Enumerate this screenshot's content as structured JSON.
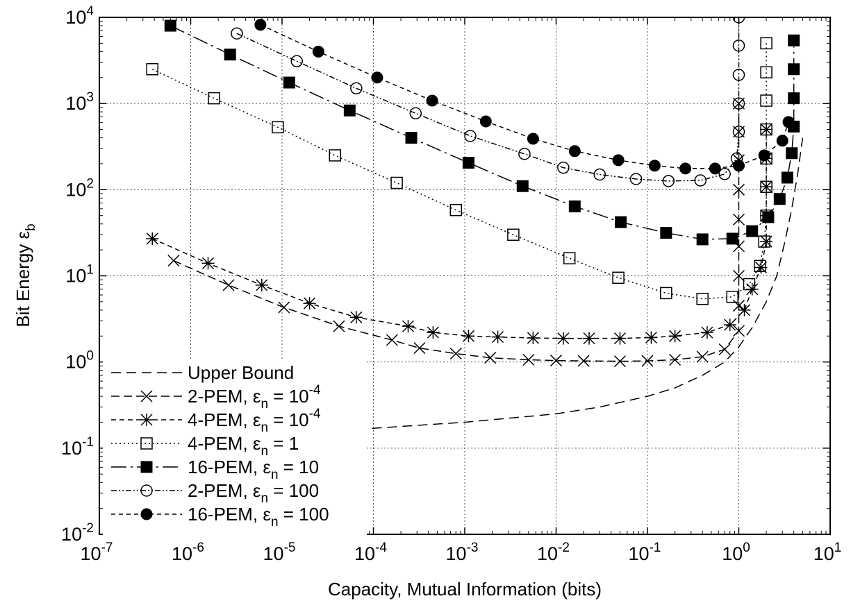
{
  "chart_data": {
    "type": "line",
    "xlabel": "Capacity, Mutual Information (bits)",
    "ylabel": {
      "text": "Bit Energy ε",
      "sub": "b"
    },
    "x_scale": "log",
    "y_scale": "log",
    "xlim": [
      1e-07,
      10
    ],
    "ylim": [
      0.01,
      10000
    ],
    "grid": true,
    "legend_position": "bottom-left",
    "x_ticks": [
      {
        "value": 1e-07,
        "base": "10",
        "exp": "-7"
      },
      {
        "value": 1e-06,
        "base": "10",
        "exp": "-6"
      },
      {
        "value": 1e-05,
        "base": "10",
        "exp": "-5"
      },
      {
        "value": 0.0001,
        "base": "10",
        "exp": "-4"
      },
      {
        "value": 0.001,
        "base": "10",
        "exp": "-3"
      },
      {
        "value": 0.01,
        "base": "10",
        "exp": "-2"
      },
      {
        "value": 0.1,
        "base": "10",
        "exp": "-1"
      },
      {
        "value": 1,
        "base": "10",
        "exp": "0"
      },
      {
        "value": 10,
        "base": "10",
        "exp": "1"
      }
    ],
    "y_ticks": [
      {
        "value": 0.01,
        "base": "10",
        "exp": "-2"
      },
      {
        "value": 0.1,
        "base": "10",
        "exp": "-1"
      },
      {
        "value": 1,
        "base": "10",
        "exp": "0"
      },
      {
        "value": 10,
        "base": "10",
        "exp": "1"
      },
      {
        "value": 100,
        "base": "10",
        "exp": "2"
      },
      {
        "value": 1000,
        "base": "10",
        "exp": "3"
      },
      {
        "value": 10000,
        "base": "10",
        "exp": "4"
      }
    ],
    "series": [
      {
        "name": "Upper Bound",
        "legend_parts": [
          "Upper Bound"
        ],
        "marker": "none",
        "dash": "14,8",
        "points": [
          [
            1.41e-06,
            0.125
          ],
          [
            1e-05,
            0.14
          ],
          [
            0.0001,
            0.17
          ],
          [
            0.001,
            0.2
          ],
          [
            0.01,
            0.25
          ],
          [
            0.03,
            0.3
          ],
          [
            0.1,
            0.4
          ],
          [
            0.2,
            0.5
          ],
          [
            0.4,
            0.7
          ],
          [
            0.7,
            1.0
          ],
          [
            1.0,
            1.5
          ],
          [
            1.4,
            2.5
          ],
          [
            2.0,
            5.0
          ],
          [
            2.6,
            10
          ],
          [
            3.2,
            25
          ],
          [
            3.8,
            60
          ],
          [
            4.4,
            150
          ],
          [
            5.0,
            400
          ]
        ]
      },
      {
        "name": "2-PEM, εn = 10^-4",
        "legend_parts": [
          "2-PEM, ε",
          "n",
          " = 10",
          "-4"
        ],
        "marker": "cross",
        "dash": "12,6",
        "points": [
          [
            6.5e-07,
            15
          ],
          [
            2.6e-06,
            7.8
          ],
          [
            1.05e-05,
            4.3
          ],
          [
            4.2e-05,
            2.6
          ],
          [
            0.00016,
            1.8
          ],
          [
            0.00032,
            1.45
          ],
          [
            0.0008,
            1.25
          ],
          [
            0.0019,
            1.12
          ],
          [
            0.005,
            1.06
          ],
          [
            0.01,
            1.04
          ],
          [
            0.02,
            1.03
          ],
          [
            0.05,
            1.02
          ],
          [
            0.1,
            1.03
          ],
          [
            0.2,
            1.06
          ],
          [
            0.4,
            1.15
          ],
          [
            0.7,
            1.4
          ],
          [
            1.0,
            2.3
          ],
          [
            1.0,
            4.5
          ],
          [
            1.0,
            10
          ],
          [
            1.0,
            22
          ],
          [
            1.0,
            45
          ],
          [
            1.0,
            100
          ],
          [
            1.0,
            220
          ],
          [
            1.0,
            470
          ],
          [
            1.0,
            1000
          ]
        ]
      },
      {
        "name": "4-PEM, εn = 10^-4",
        "legend_parts": [
          "4-PEM, ε",
          "n",
          " = 10",
          "-4"
        ],
        "marker": "asterisk",
        "dash": "7,5",
        "points": [
          [
            3.8e-07,
            27
          ],
          [
            1.55e-06,
            14
          ],
          [
            6e-06,
            7.8
          ],
          [
            2e-05,
            4.8
          ],
          [
            6.5e-05,
            3.3
          ],
          [
            0.00024,
            2.6
          ],
          [
            0.00045,
            2.2
          ],
          [
            0.0011,
            2.0
          ],
          [
            0.0023,
            1.95
          ],
          [
            0.0056,
            1.9
          ],
          [
            0.012,
            1.88
          ],
          [
            0.023,
            1.88
          ],
          [
            0.05,
            1.88
          ],
          [
            0.11,
            1.92
          ],
          [
            0.2,
            2.0
          ],
          [
            0.45,
            2.2
          ],
          [
            0.8,
            2.7
          ],
          [
            1.15,
            4.0
          ],
          [
            1.4,
            7.0
          ],
          [
            1.75,
            12.5
          ],
          [
            2.0,
            25
          ],
          [
            2.0,
            50
          ],
          [
            2.0,
            108
          ],
          [
            2.0,
            230
          ],
          [
            2.0,
            500
          ]
        ]
      },
      {
        "name": "4-PEM, εn = 1",
        "legend_parts": [
          "4-PEM, ε",
          "n",
          " = 1"
        ],
        "marker": "square-open",
        "dash": "2,4",
        "points": [
          [
            3.8e-07,
            2500
          ],
          [
            1.8e-06,
            1150
          ],
          [
            9e-06,
            530
          ],
          [
            3.8e-05,
            250
          ],
          [
            0.00018,
            120
          ],
          [
            0.0008,
            58
          ],
          [
            0.0034,
            30
          ],
          [
            0.014,
            16
          ],
          [
            0.048,
            9.5
          ],
          [
            0.16,
            6.3
          ],
          [
            0.4,
            5.4
          ],
          [
            0.85,
            5.7
          ],
          [
            1.3,
            8.0
          ],
          [
            1.7,
            13
          ],
          [
            1.9,
            25
          ],
          [
            2.0,
            50
          ],
          [
            2.0,
            108
          ],
          [
            2.0,
            230
          ],
          [
            2.0,
            500
          ],
          [
            2.0,
            1080
          ],
          [
            2.0,
            2300
          ],
          [
            2.0,
            5000
          ]
        ]
      },
      {
        "name": "16-PEM, εn = 10",
        "legend_parts": [
          "16-PEM, ε",
          "n",
          " = 10"
        ],
        "marker": "square-filled",
        "dash": "22,6,3,6",
        "points": [
          [
            6e-07,
            8000
          ],
          [
            2.7e-06,
            3700
          ],
          [
            1.2e-05,
            1750
          ],
          [
            5.5e-05,
            830
          ],
          [
            0.00026,
            400
          ],
          [
            0.0011,
            205
          ],
          [
            0.0043,
            110
          ],
          [
            0.016,
            64
          ],
          [
            0.051,
            42
          ],
          [
            0.16,
            31.5
          ],
          [
            0.4,
            26.5
          ],
          [
            0.85,
            27
          ],
          [
            1.4,
            33
          ],
          [
            2.1,
            48
          ],
          [
            2.8,
            78
          ],
          [
            3.4,
            138
          ],
          [
            3.8,
            265
          ],
          [
            4.0,
            540
          ],
          [
            4.0,
            1150
          ],
          [
            4.0,
            2500
          ],
          [
            4.0,
            5400
          ]
        ]
      },
      {
        "name": "2-PEM, εn = 100",
        "legend_parts": [
          "2-PEM, ε",
          "n",
          " = 100"
        ],
        "marker": "circle-open",
        "dash": "8,3,2,3,2,3",
        "points": [
          [
            3.2e-06,
            6500
          ],
          [
            1.45e-05,
            3100
          ],
          [
            6.5e-05,
            1500
          ],
          [
            0.00029,
            770
          ],
          [
            0.00115,
            420
          ],
          [
            0.0045,
            260
          ],
          [
            0.012,
            180
          ],
          [
            0.03,
            150
          ],
          [
            0.075,
            133
          ],
          [
            0.17,
            126
          ],
          [
            0.38,
            128
          ],
          [
            0.7,
            152
          ],
          [
            0.95,
            230
          ],
          [
            1.0,
            470
          ],
          [
            1.0,
            1000
          ],
          [
            1.0,
            2150
          ],
          [
            1.0,
            4700
          ],
          [
            1.0,
            10000
          ]
        ]
      },
      {
        "name": "16-PEM, εn = 100",
        "legend_parts": [
          "16-PEM, ε",
          "n",
          " = 100"
        ],
        "marker": "circle-filled",
        "dash": "6,5",
        "points": [
          [
            5.8e-06,
            8200
          ],
          [
            2.5e-05,
            4000
          ],
          [
            0.00011,
            2000
          ],
          [
            0.00044,
            1080
          ],
          [
            0.0017,
            620
          ],
          [
            0.0056,
            390
          ],
          [
            0.016,
            280
          ],
          [
            0.048,
            220
          ],
          [
            0.12,
            190
          ],
          [
            0.26,
            176
          ],
          [
            0.55,
            176
          ],
          [
            1.0,
            190
          ],
          [
            1.9,
            250
          ],
          [
            3.0,
            370
          ],
          [
            3.5,
            610
          ]
        ]
      }
    ]
  }
}
